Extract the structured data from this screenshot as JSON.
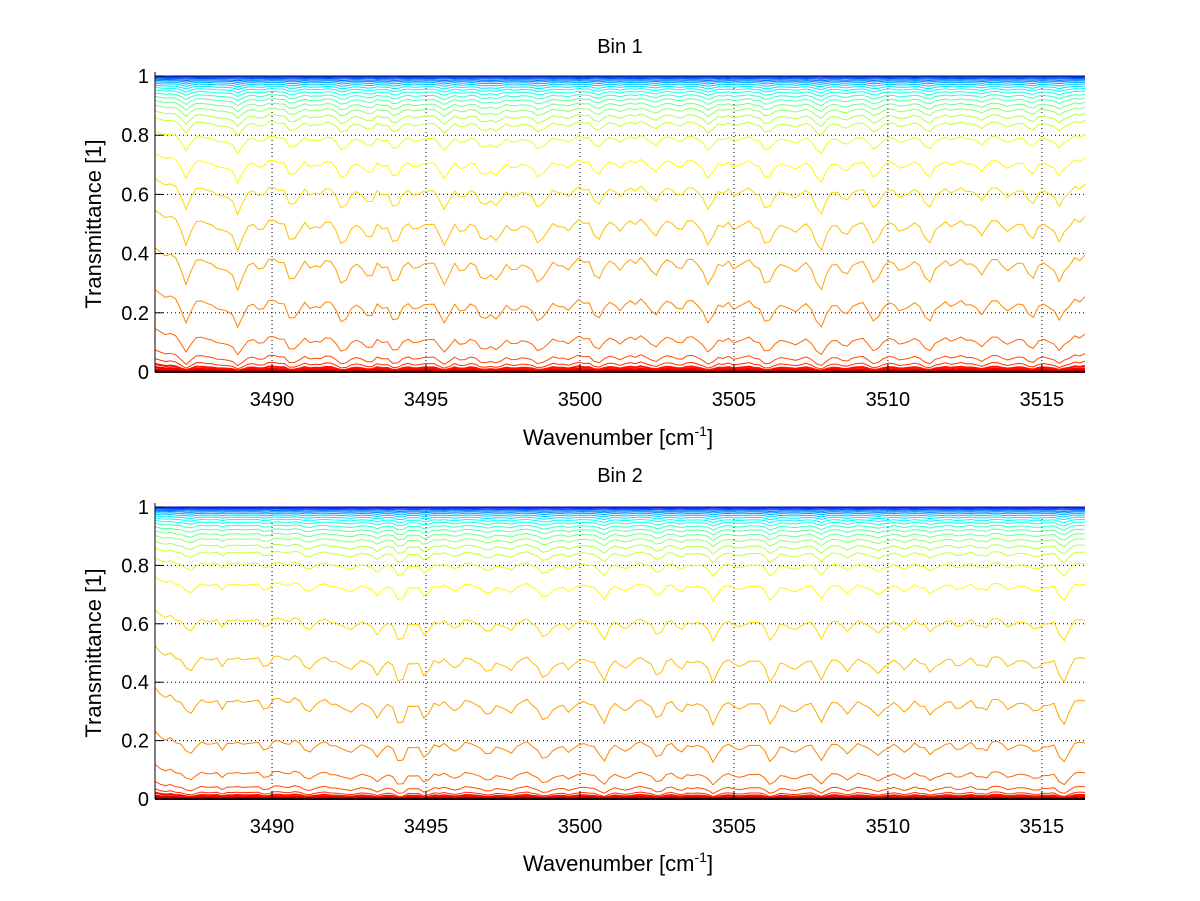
{
  "chart_data": [
    {
      "type": "line",
      "title": "Bin 1",
      "xlabel": "Wavenumber [cm",
      "xlabel_sup": "-1",
      "xlabel_end": "]",
      "ylabel": "Transmittance [1]",
      "xlim": [
        3486.2,
        3516.4
      ],
      "ylim": [
        0,
        1
      ],
      "xticks": [
        3490,
        3495,
        3500,
        3505,
        3510,
        3515
      ],
      "xtick_labels": [
        "3490",
        "3495",
        "3500",
        "3505",
        "3510",
        "3515"
      ],
      "yticks": [
        0,
        0.2,
        0.4,
        0.6,
        0.8,
        1
      ],
      "ytick_labels": [
        "0",
        "0.2",
        "0.4",
        "0.6",
        "0.8",
        "1"
      ],
      "grid": true,
      "colormap": "jet",
      "absorption_line_centers": [
        3487.2,
        3488.3,
        3488.9,
        3489.6,
        3490.65,
        3491.4,
        3492.3,
        3493.15,
        3494.0,
        3494.7,
        3495.6,
        3496.2,
        3496.85,
        3497.3,
        3497.9,
        3498.7,
        3499.6,
        3500.6,
        3501.3,
        3502.4,
        3503.2,
        3504.15,
        3505.0,
        3506.05,
        3506.9,
        3507.8,
        3508.6,
        3509.6,
        3510.4,
        3511.3,
        3512.1,
        3513.0,
        3513.9,
        3514.7,
        3515.6
      ],
      "absorption_line_strengths": [
        0.9,
        0.4,
        1.1,
        0.3,
        0.8,
        0.3,
        0.9,
        0.6,
        1.0,
        0.3,
        0.8,
        0.3,
        0.7,
        0.6,
        0.3,
        0.9,
        0.3,
        0.8,
        0.3,
        0.6,
        0.3,
        1.0,
        0.3,
        1.0,
        0.4,
        1.3,
        0.5,
        0.9,
        0.3,
        1.0,
        0.3,
        0.6,
        0.3,
        0.7,
        0.8
      ],
      "series_baseline_transmittance": [
        1.0,
        0.998,
        0.995,
        0.992,
        0.988,
        0.984,
        0.979,
        0.973,
        0.966,
        0.958,
        0.949,
        0.938,
        0.925,
        0.91,
        0.893,
        0.872,
        0.848,
        0.8,
        0.72,
        0.63,
        0.52,
        0.39,
        0.25,
        0.125,
        0.06,
        0.035,
        0.02,
        0.012,
        0.006,
        0.003,
        0.001,
        0.0
      ]
    },
    {
      "type": "line",
      "title": "Bin 2",
      "xlabel": "Wavenumber [cm",
      "xlabel_sup": "-1",
      "xlabel_end": "]",
      "ylabel": "Transmittance [1]",
      "xlim": [
        3486.2,
        3516.4
      ],
      "ylim": [
        0,
        1
      ],
      "xticks": [
        3490,
        3495,
        3500,
        3505,
        3510,
        3515
      ],
      "xtick_labels": [
        "3490",
        "3495",
        "3500",
        "3505",
        "3510",
        "3515"
      ],
      "yticks": [
        0,
        0.2,
        0.4,
        0.6,
        0.8,
        1
      ],
      "ytick_labels": [
        "0",
        "0.2",
        "0.4",
        "0.6",
        "0.8",
        "1"
      ],
      "grid": true,
      "colormap": "jet",
      "absorption_line_centers": [
        3487.3,
        3488.4,
        3489.8,
        3491.2,
        3492.5,
        3493.4,
        3494.15,
        3495.0,
        3495.9,
        3497.0,
        3497.7,
        3498.85,
        3499.7,
        3500.75,
        3501.5,
        3502.5,
        3503.3,
        3504.3,
        3505.2,
        3506.2,
        3507.0,
        3507.85,
        3508.7,
        3509.65,
        3510.5,
        3511.4,
        3512.3,
        3513.1,
        3514.0,
        3514.8,
        3515.7
      ],
      "absorption_line_strengths": [
        0.6,
        0.3,
        0.3,
        0.5,
        0.5,
        0.6,
        0.9,
        0.6,
        0.4,
        0.6,
        0.4,
        0.9,
        0.4,
        0.8,
        0.4,
        0.7,
        0.4,
        0.8,
        0.4,
        1.0,
        0.4,
        0.8,
        0.4,
        0.6,
        0.3,
        0.6,
        0.3,
        0.4,
        0.3,
        0.4,
        0.9
      ],
      "series_baseline_transmittance": [
        1.0,
        0.998,
        0.995,
        0.992,
        0.988,
        0.984,
        0.979,
        0.973,
        0.966,
        0.958,
        0.949,
        0.938,
        0.925,
        0.91,
        0.893,
        0.872,
        0.848,
        0.81,
        0.74,
        0.62,
        0.49,
        0.345,
        0.2,
        0.095,
        0.045,
        0.025,
        0.015,
        0.008,
        0.004,
        0.002,
        0.001,
        0.0
      ]
    }
  ]
}
